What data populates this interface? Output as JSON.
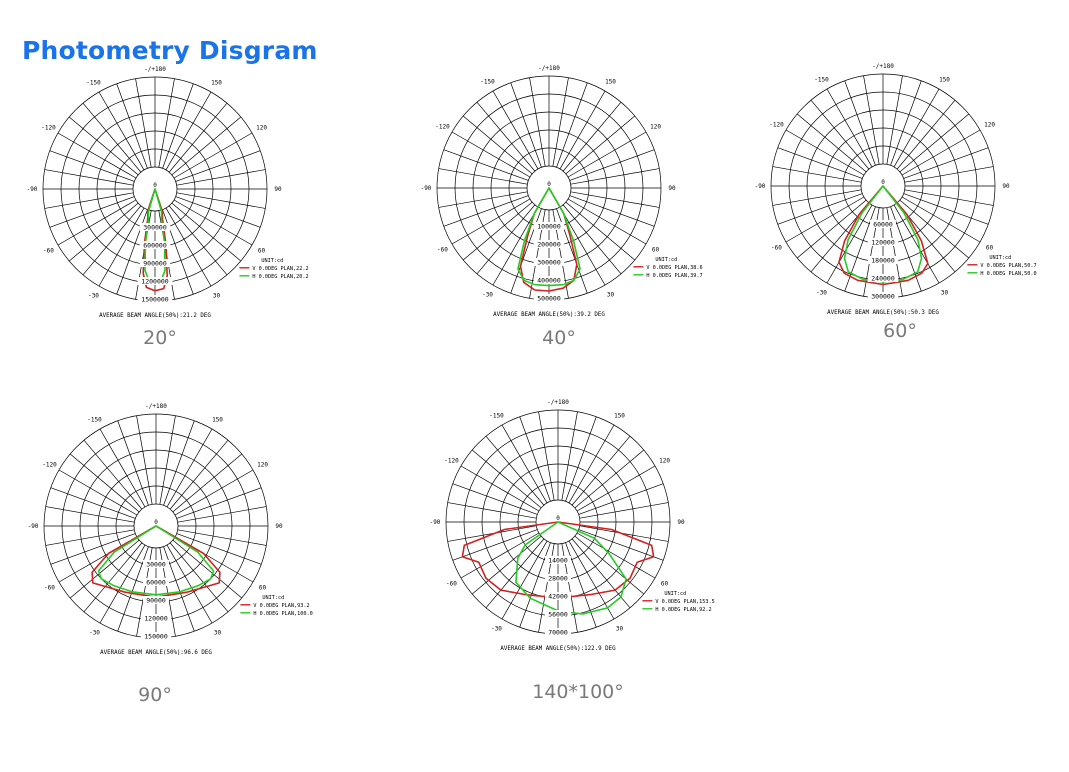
{
  "page": {
    "title": "Photometry Disgram"
  },
  "chart_data": [
    {
      "type": "polar",
      "caption": "20°",
      "center_label": "0",
      "top_label": "-/+180",
      "angle_labels": [
        "-150",
        "150",
        "-120",
        "120",
        "-90",
        "90",
        "-60",
        "60",
        "-30",
        "30"
      ],
      "ring_labels": [
        "300000",
        "600000",
        "900000",
        "1200000",
        "1500000"
      ],
      "rmax": 1500000,
      "unit": "UNIT:cd",
      "series": [
        {
          "name": "V 0.0DEG PLAN,22.2",
          "color": "#d42020",
          "points": [
            [
              -35,
              0
            ],
            [
              -18,
              30000
            ],
            [
              -14,
              120000
            ],
            [
              -11,
              550000
            ],
            [
              -8,
              1050000
            ],
            [
              -5,
              1280000
            ],
            [
              0,
              1330000
            ],
            [
              5,
              1300000
            ],
            [
              8,
              1100000
            ],
            [
              11,
              600000
            ],
            [
              14,
              150000
            ],
            [
              18,
              30000
            ],
            [
              35,
              0
            ]
          ]
        },
        {
          "name": "H 0.0DEG PLAN,20.2",
          "color": "#22cc22",
          "points": [
            [
              -35,
              0
            ],
            [
              -16,
              30000
            ],
            [
              -12,
              150000
            ],
            [
              -10,
              550000
            ],
            [
              -7,
              1000000
            ],
            [
              -4,
              1150000
            ],
            [
              0,
              1180000
            ],
            [
              4,
              1150000
            ],
            [
              7,
              1000000
            ],
            [
              10,
              550000
            ],
            [
              12,
              150000
            ],
            [
              16,
              30000
            ],
            [
              35,
              0
            ]
          ]
        }
      ],
      "footer": "AVERAGE BEAM ANGLE(50%):21.2 DEG"
    },
    {
      "type": "polar",
      "caption": "40°",
      "center_label": "0",
      "top_label": "-/+180",
      "angle_labels": [
        "-150",
        "150",
        "-120",
        "120",
        "-90",
        "90",
        "-60",
        "60",
        "-30",
        "30"
      ],
      "ring_labels": [
        "100000",
        "200000",
        "300000",
        "400000",
        "500000"
      ],
      "rmax": 500000,
      "unit": "UNIT:cd",
      "series": [
        {
          "name": "V 0.0DEG PLAN,38.6",
          "color": "#d42020",
          "points": [
            [
              -50,
              0
            ],
            [
              -30,
              40000
            ],
            [
              -24,
              170000
            ],
            [
              -20,
              340000
            ],
            [
              -15,
              420000
            ],
            [
              -8,
              450000
            ],
            [
              0,
              450000
            ],
            [
              8,
              440000
            ],
            [
              15,
              410000
            ],
            [
              20,
              330000
            ],
            [
              24,
              160000
            ],
            [
              30,
              40000
            ],
            [
              50,
              0
            ]
          ]
        },
        {
          "name": "H 0.0DEG PLAN,39.7",
          "color": "#22cc22",
          "points": [
            [
              -50,
              0
            ],
            [
              -30,
              40000
            ],
            [
              -25,
              200000
            ],
            [
              -21,
              360000
            ],
            [
              -15,
              410000
            ],
            [
              -8,
              420000
            ],
            [
              0,
              420000
            ],
            [
              8,
              420000
            ],
            [
              15,
              410000
            ],
            [
              21,
              360000
            ],
            [
              25,
              200000
            ],
            [
              30,
              40000
            ],
            [
              50,
              0
            ]
          ]
        }
      ],
      "footer": "AVERAGE BEAM ANGLE(50%):39.2 DEG"
    },
    {
      "type": "polar",
      "caption": "60°",
      "center_label": "0",
      "top_label": "-/+180",
      "angle_labels": [
        "-150",
        "150",
        "-120",
        "120",
        "-90",
        "90",
        "-60",
        "60",
        "-30",
        "30"
      ],
      "ring_labels": [
        "60000",
        "120000",
        "180000",
        "240000",
        "300000"
      ],
      "rmax": 300000,
      "unit": "UNIT:cd",
      "series": [
        {
          "name": "V 0.0DEG PLAN,50.7",
          "color": "#d42020",
          "points": [
            [
              -60,
              0
            ],
            [
              -40,
              50000
            ],
            [
              -35,
              150000
            ],
            [
              -30,
              220000
            ],
            [
              -24,
              245000
            ],
            [
              -15,
              252000
            ],
            [
              0,
              255000
            ],
            [
              15,
              252000
            ],
            [
              24,
              245000
            ],
            [
              30,
              225000
            ],
            [
              35,
              150000
            ],
            [
              40,
              50000
            ],
            [
              60,
              0
            ]
          ]
        },
        {
          "name": "H 0.0DEG PLAN,50.0",
          "color": "#22cc22",
          "points": [
            [
              -60,
              0
            ],
            [
              -38,
              40000
            ],
            [
              -33,
              140000
            ],
            [
              -28,
              200000
            ],
            [
              -22,
              235000
            ],
            [
              -12,
              245000
            ],
            [
              0,
              246000
            ],
            [
              12,
              245000
            ],
            [
              22,
              235000
            ],
            [
              28,
              200000
            ],
            [
              33,
              140000
            ],
            [
              38,
              40000
            ],
            [
              60,
              0
            ]
          ]
        }
      ],
      "footer": "AVERAGE BEAM ANGLE(50%):50.3 DEG"
    },
    {
      "type": "polar",
      "caption": "90°",
      "center_label": "0",
      "top_label": "-/+180",
      "angle_labels": [
        "-150",
        "150",
        "-120",
        "120",
        "-90",
        "90",
        "-60",
        "60",
        "-30",
        "30"
      ],
      "ring_labels": [
        "30000",
        "60000",
        "90000",
        "120000",
        "150000"
      ],
      "rmax": 150000,
      "unit": "UNIT:cd",
      "series": [
        {
          "name": "V 0.0DEG PLAN,93.2",
          "color": "#d42020",
          "points": [
            [
              -75,
              0
            ],
            [
              -60,
              55000
            ],
            [
              -54,
              95000
            ],
            [
              -48,
              105000
            ],
            [
              -40,
              95000
            ],
            [
              -25,
              85000
            ],
            [
              0,
              82000
            ],
            [
              25,
              85000
            ],
            [
              40,
              95000
            ],
            [
              48,
              105000
            ],
            [
              54,
              95000
            ],
            [
              60,
              55000
            ],
            [
              75,
              0
            ]
          ]
        },
        {
          "name": "H 0.0DEG PLAN,100.0",
          "color": "#22cc22",
          "points": [
            [
              -75,
              0
            ],
            [
              -58,
              45000
            ],
            [
              -52,
              85000
            ],
            [
              -46,
              90000
            ],
            [
              -35,
              85000
            ],
            [
              -20,
              80000
            ],
            [
              0,
              78000
            ],
            [
              20,
              80000
            ],
            [
              35,
              85000
            ],
            [
              46,
              90000
            ],
            [
              52,
              85000
            ],
            [
              58,
              45000
            ],
            [
              75,
              0
            ]
          ]
        }
      ],
      "footer": "AVERAGE BEAM ANGLE(50%):96.6 DEG"
    },
    {
      "type": "polar",
      "caption": "140*100°",
      "center_label": "0",
      "top_label": "-/+180",
      "angle_labels": [
        "-150",
        "150",
        "-120",
        "120",
        "-90",
        "90",
        "-60",
        "60",
        "-30",
        "30"
      ],
      "ring_labels": [
        "14000",
        "28000",
        "42000",
        "56000",
        "70000"
      ],
      "rmax": 70000,
      "unit": "UNIT:cd",
      "series": [
        {
          "name": "V 0.0DEG PLAN,153.5",
          "color": "#d42020",
          "points": [
            [
              -90,
              0
            ],
            [
              -82,
              25000
            ],
            [
              -76,
              58000
            ],
            [
              -70,
              62000
            ],
            [
              -63,
              52000
            ],
            [
              -52,
              54000
            ],
            [
              -40,
              52000
            ],
            [
              -25,
              45000
            ],
            [
              0,
              42000
            ],
            [
              25,
              45000
            ],
            [
              40,
              52000
            ],
            [
              52,
              54000
            ],
            [
              63,
              52000
            ],
            [
              70,
              62000
            ],
            [
              76,
              58000
            ],
            [
              82,
              25000
            ],
            [
              90,
              0
            ]
          ]
        },
        {
          "name": "H 0.0DEG PLAN,92.2",
          "color": "#22cc22",
          "points": [
            [
              -70,
              0
            ],
            [
              -55,
              14000
            ],
            [
              -48,
              25000
            ],
            [
              -35,
              40000
            ],
            [
              -20,
              46000
            ],
            [
              0,
              52000
            ],
            [
              15,
              57000
            ],
            [
              30,
              60000
            ],
            [
              40,
              59000
            ],
            [
              50,
              52000
            ],
            [
              58,
              30000
            ],
            [
              66,
              14000
            ],
            [
              75,
              0
            ]
          ]
        }
      ],
      "footer": "AVERAGE BEAM ANGLE(50%):122.9 DEG"
    }
  ]
}
